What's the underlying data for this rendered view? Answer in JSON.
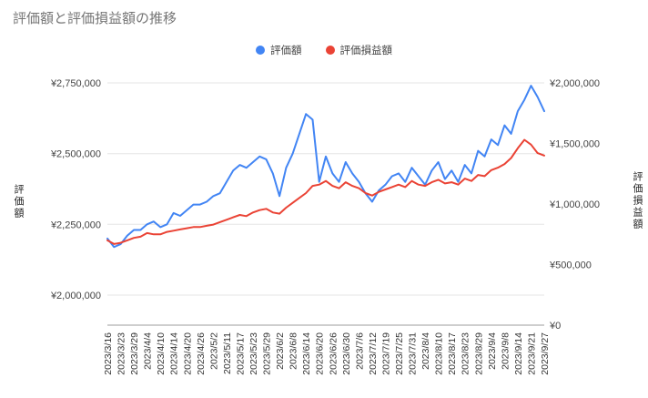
{
  "chart_data": {
    "type": "line",
    "title": "評価額と評価損益額の推移",
    "legend_position": "top",
    "grid": "horizontal",
    "background": "#ffffff",
    "samples_per_label_interval": 2,
    "x_tick_labels": [
      "2023/3/16",
      "2023/3/23",
      "2023/3/29",
      "2023/4/4",
      "2023/4/10",
      "2023/4/14",
      "2023/4/20",
      "2023/4/26",
      "2023/5/2",
      "2023/5/11",
      "2023/5/17",
      "2023/5/23",
      "2023/5/29",
      "2023/6/2",
      "2023/6/8",
      "2023/6/14",
      "2023/6/20",
      "2023/6/26",
      "2023/6/30",
      "2023/7/6",
      "2023/7/12",
      "2023/7/19",
      "2023/7/25",
      "2023/7/31",
      "2023/8/4",
      "2023/8/10",
      "2023/8/17",
      "2023/8/23",
      "2023/8/29",
      "2023/9/4",
      "2023/9/8",
      "2023/9/14",
      "2023/9/21",
      "2023/9/27"
    ],
    "left_axis": {
      "title": "評価額",
      "tick_labels": [
        "¥2,000,000",
        "¥2,250,000",
        "¥2,500,000",
        "¥2,750,000"
      ],
      "tick_values": [
        2000000,
        2250000,
        2500000,
        2750000
      ]
    },
    "right_axis": {
      "title": "評価損益額",
      "tick_labels": [
        "¥0",
        "¥500,000",
        "¥1,000,000",
        "¥1,500,000",
        "¥2,000,000"
      ],
      "tick_values": [
        0,
        500000,
        1000000,
        1500000,
        2000000
      ]
    },
    "series": [
      {
        "name": "評価額",
        "axis": "left",
        "color": "#4285F4",
        "values": [
          2200000,
          2170000,
          2180000,
          2210000,
          2230000,
          2230000,
          2250000,
          2260000,
          2240000,
          2250000,
          2290000,
          2280000,
          2300000,
          2320000,
          2320000,
          2330000,
          2350000,
          2360000,
          2400000,
          2440000,
          2460000,
          2450000,
          2470000,
          2490000,
          2480000,
          2430000,
          2350000,
          2450000,
          2500000,
          2570000,
          2640000,
          2620000,
          2400000,
          2490000,
          2430000,
          2400000,
          2470000,
          2430000,
          2400000,
          2360000,
          2330000,
          2370000,
          2390000,
          2420000,
          2430000,
          2400000,
          2450000,
          2420000,
          2390000,
          2440000,
          2470000,
          2410000,
          2440000,
          2400000,
          2460000,
          2430000,
          2510000,
          2490000,
          2550000,
          2530000,
          2600000,
          2570000,
          2650000,
          2690000,
          2740000,
          2700000,
          2650000
        ]
      },
      {
        "name": "評価損益額",
        "axis": "right",
        "color": "#EA4335",
        "values": [
          700000,
          670000,
          680000,
          700000,
          720000,
          730000,
          760000,
          750000,
          750000,
          770000,
          780000,
          790000,
          800000,
          810000,
          810000,
          820000,
          830000,
          850000,
          870000,
          890000,
          910000,
          900000,
          930000,
          950000,
          960000,
          930000,
          920000,
          970000,
          1010000,
          1050000,
          1090000,
          1150000,
          1160000,
          1190000,
          1150000,
          1130000,
          1180000,
          1150000,
          1130000,
          1090000,
          1070000,
          1100000,
          1120000,
          1140000,
          1160000,
          1140000,
          1190000,
          1160000,
          1150000,
          1180000,
          1200000,
          1170000,
          1180000,
          1160000,
          1210000,
          1190000,
          1240000,
          1230000,
          1280000,
          1300000,
          1330000,
          1380000,
          1460000,
          1530000,
          1490000,
          1420000,
          1400000
        ]
      }
    ]
  }
}
